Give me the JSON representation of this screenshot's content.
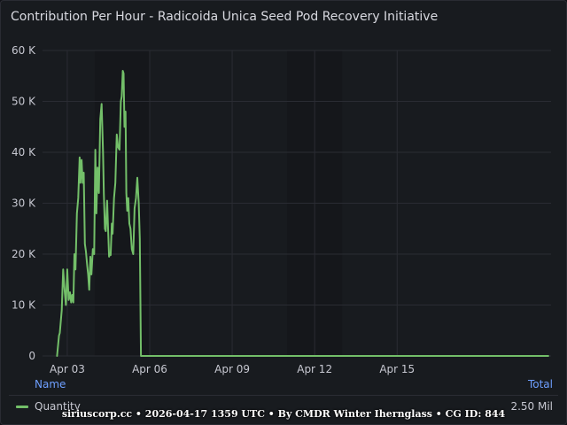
{
  "panel": {
    "title": "Contribution Per Hour - Radicoida Unica Seed Pod Recovery Initiative"
  },
  "legend": {
    "name_header": "Name",
    "total_header": "Total",
    "series_label": "Quantity",
    "total_value": "2.50 Mil"
  },
  "footer": {
    "watermark": "siriuscorp.cc • 2026-04-17 1359 UTC • By CMDR Winter Iherngl ass • CG ID: 844"
  },
  "colors": {
    "series": "#73bf69",
    "grid": "#2a2c33",
    "background": "#181b1f",
    "shaded_band": "#15171b"
  },
  "chart_data": {
    "type": "line",
    "title": "Contribution Per Hour - Radicoida Unica Seed Pod Recovery Initiative",
    "xlabel": "",
    "ylabel": "",
    "x_unit": "days since Apr 03 00:00",
    "xlim": [
      -0.9,
      17.6
    ],
    "ylim": [
      0,
      60000
    ],
    "grid": true,
    "legend": "bottom",
    "x_ticks": [
      {
        "x": 0,
        "label": "Apr 03"
      },
      {
        "x": 3,
        "label": "Apr 06"
      },
      {
        "x": 6,
        "label": "Apr 09"
      },
      {
        "x": 9,
        "label": "Apr 12"
      },
      {
        "x": 12,
        "label": "Apr 15"
      }
    ],
    "y_ticks": [
      {
        "y": 0,
        "label": "0"
      },
      {
        "y": 10000,
        "label": "10 K"
      },
      {
        "y": 20000,
        "label": "20 K"
      },
      {
        "y": 30000,
        "label": "30 K"
      },
      {
        "y": 40000,
        "label": "40 K"
      },
      {
        "y": 50000,
        "label": "50 K"
      },
      {
        "y": 60000,
        "label": "60 K"
      }
    ],
    "shaded_bands": [
      [
        1.0,
        3.0
      ],
      [
        8.0,
        10.0
      ]
    ],
    "series": [
      {
        "name": "Quantity",
        "x": [
          -0.37,
          -0.3,
          -0.27,
          -0.2,
          -0.15,
          -0.09,
          -0.05,
          0.0,
          0.05,
          0.1,
          0.14,
          0.18,
          0.22,
          0.26,
          0.3,
          0.35,
          0.4,
          0.45,
          0.48,
          0.52,
          0.56,
          0.6,
          0.64,
          0.68,
          0.72,
          0.76,
          0.8,
          0.84,
          0.88,
          0.93,
          0.98,
          1.02,
          1.06,
          1.1,
          1.15,
          1.2,
          1.25,
          1.3,
          1.33,
          1.37,
          1.4,
          1.45,
          1.48,
          1.52,
          1.55,
          1.58,
          1.62,
          1.65,
          1.7,
          1.75,
          1.8,
          1.85,
          1.9,
          1.95,
          1.98,
          2.02,
          2.05,
          2.08,
          2.12,
          2.15,
          2.18,
          2.22,
          2.26,
          2.3,
          2.35,
          2.4,
          2.45,
          2.5,
          2.55,
          2.6,
          2.64,
          2.68,
          2.72,
          2.76,
          2.8,
          2.84,
          2.88,
          2.92,
          2.96,
          3.0,
          3.05,
          3.1,
          3.15,
          3.2,
          3.25,
          3.3,
          3.35,
          3.4,
          3.45,
          3.5,
          3.55,
          3.6,
          3.65,
          3.7,
          17.5
        ],
        "y": [
          0,
          4000,
          4500,
          9000,
          17000,
          12500,
          10000,
          17000,
          11000,
          12500,
          10500,
          12000,
          10500,
          20000,
          17000,
          28000,
          31000,
          39000,
          34000,
          38500,
          34000,
          36000,
          22000,
          20500,
          18000,
          16000,
          13000,
          19500,
          16000,
          21000,
          20000,
          40500,
          28000,
          37000,
          32000,
          46500,
          49500,
          40000,
          32000,
          25000,
          24500,
          30500,
          26000,
          19500,
          20000,
          19800,
          26000,
          24000,
          31000,
          34000,
          43500,
          41000,
          40500,
          50000,
          51000,
          56000,
          55500,
          45000,
          48000,
          32000,
          28500,
          31000,
          26000,
          25000,
          21000,
          20000,
          29000,
          31000,
          35000,
          30000,
          23000,
          0,
          0,
          0,
          0,
          0,
          0,
          0,
          0,
          0,
          0,
          0,
          0,
          0,
          0,
          0,
          0,
          0,
          0,
          0,
          0,
          0,
          0,
          0,
          0
        ]
      }
    ]
  }
}
